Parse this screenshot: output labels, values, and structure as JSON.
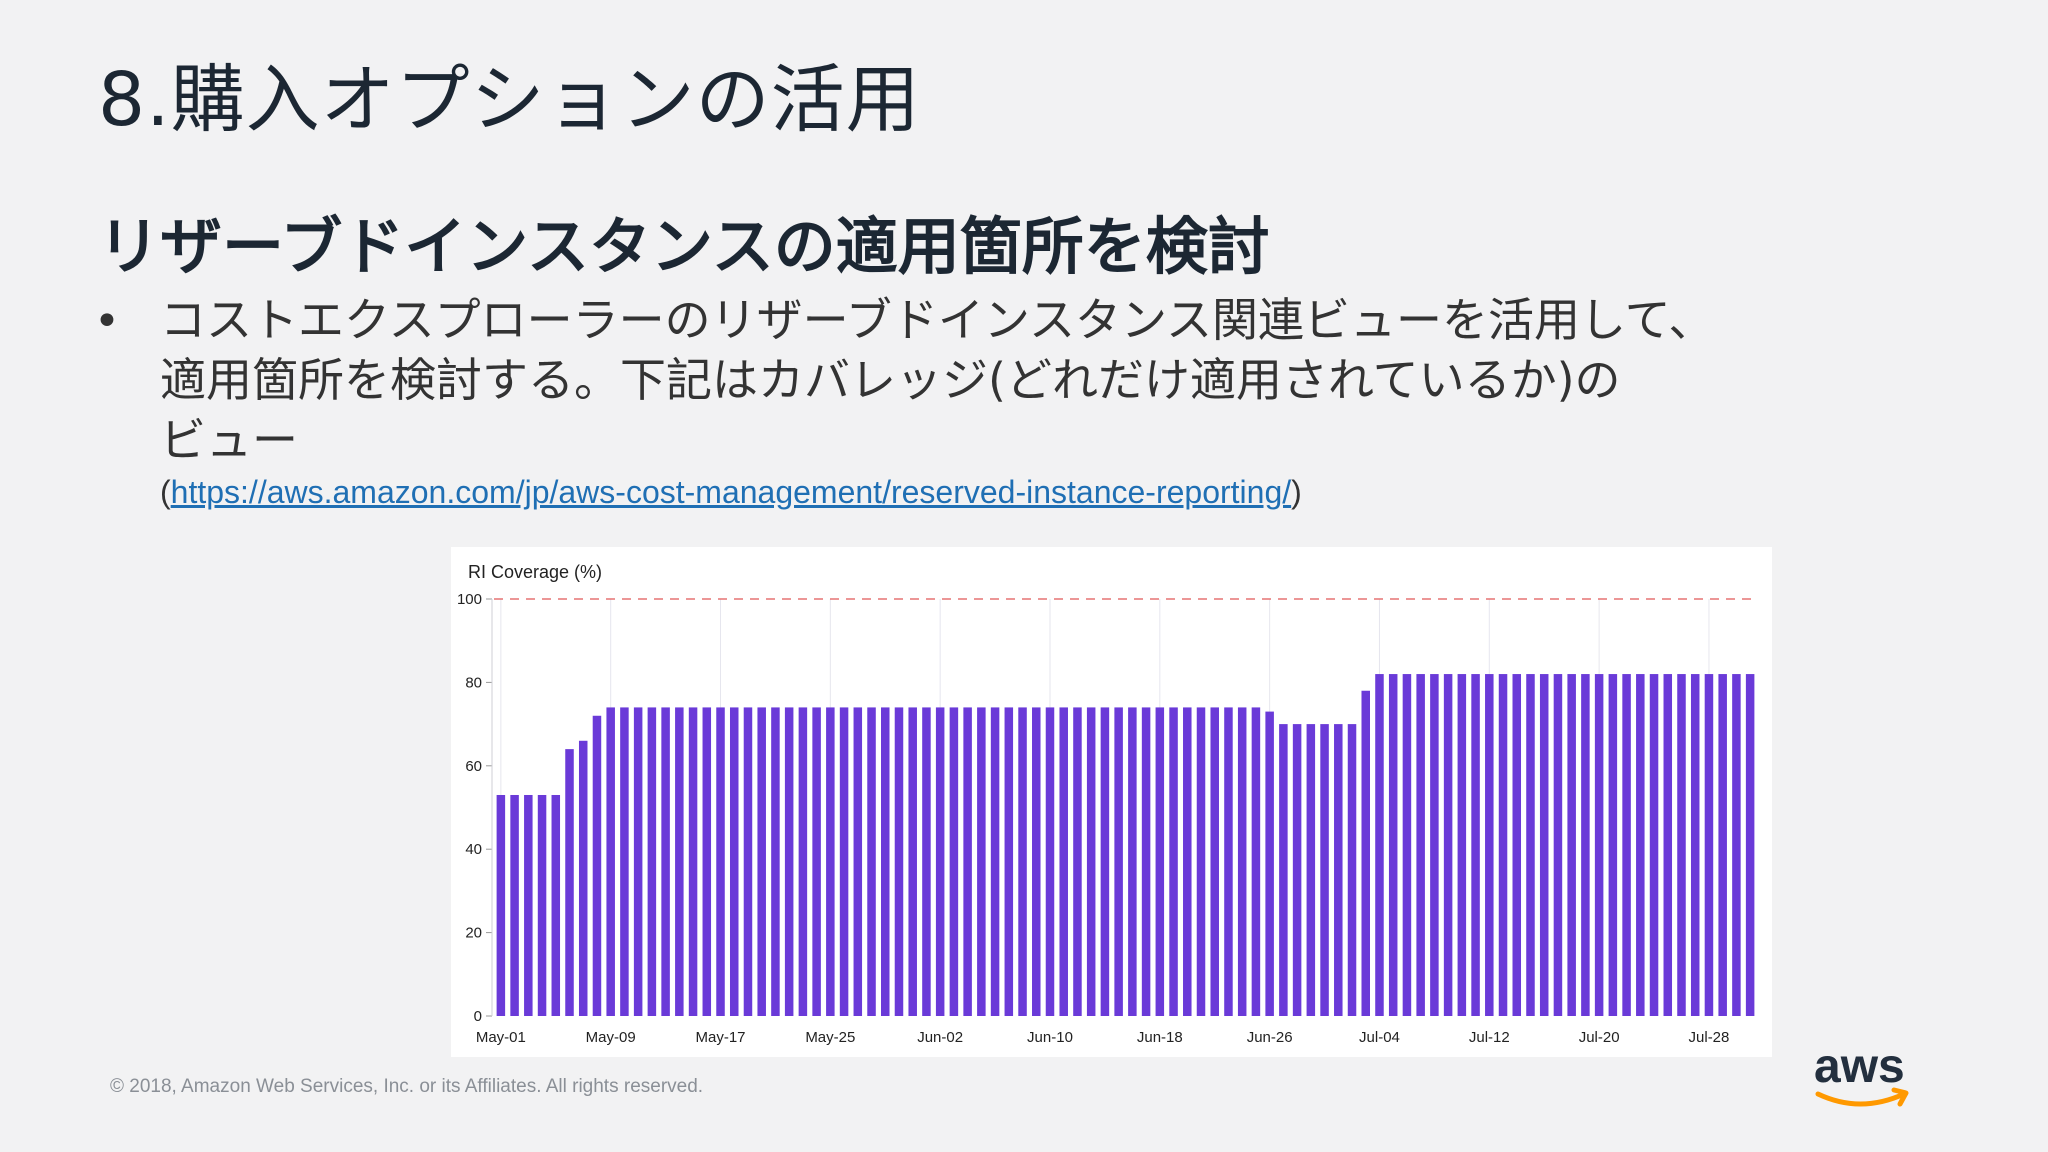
{
  "slide": {
    "title": "8.購入オプションの活用",
    "subtitle": "リザーブドインスタンスの適用箇所を検討",
    "bullet_symbol": "•",
    "bullet_lines": [
      "コストエクスプローラーのリザーブドインスタンス関連ビューを活用して、",
      "適用箇所を検討する。下記はカバレッジ(どれだけ適用されているか)の",
      "ビュー"
    ],
    "link_open": "(",
    "link_text": "https://aws.amazon.com/jp/aws-cost-management/reserved-instance-reporting/",
    "link_close": ")",
    "footer": "© 2018, Amazon Web Services, Inc. or its Affiliates. All rights reserved.",
    "logo_text": "aws"
  },
  "colors": {
    "bar": "#6a3ad8",
    "target_line": "#e57373",
    "grid": "#e6e6ee",
    "smile": "#ff9900"
  },
  "chart_data": {
    "type": "bar",
    "title": "RI Coverage (%)",
    "ylim": [
      0,
      100
    ],
    "yticks": [
      0,
      20,
      40,
      60,
      80,
      100
    ],
    "target_line": 100,
    "grid": true,
    "categories": [
      "May-01",
      "May-02",
      "May-03",
      "May-04",
      "May-05",
      "May-06",
      "May-07",
      "May-08",
      "May-09",
      "May-10",
      "May-11",
      "May-12",
      "May-13",
      "May-14",
      "May-15",
      "May-16",
      "May-17",
      "May-18",
      "May-19",
      "May-20",
      "May-21",
      "May-22",
      "May-23",
      "May-24",
      "May-25",
      "May-26",
      "May-27",
      "May-28",
      "May-29",
      "May-30",
      "May-31",
      "Jun-01",
      "Jun-02",
      "Jun-03",
      "Jun-04",
      "Jun-05",
      "Jun-06",
      "Jun-07",
      "Jun-08",
      "Jun-09",
      "Jun-10",
      "Jun-11",
      "Jun-12",
      "Jun-13",
      "Jun-14",
      "Jun-15",
      "Jun-16",
      "Jun-17",
      "Jun-18",
      "Jun-19",
      "Jun-20",
      "Jun-21",
      "Jun-22",
      "Jun-23",
      "Jun-24",
      "Jun-25",
      "Jun-26",
      "Jun-27",
      "Jun-28",
      "Jun-29",
      "Jun-30",
      "Jul-01",
      "Jul-02",
      "Jul-03",
      "Jul-04",
      "Jul-05",
      "Jul-06",
      "Jul-07",
      "Jul-08",
      "Jul-09",
      "Jul-10",
      "Jul-11",
      "Jul-12",
      "Jul-13",
      "Jul-14",
      "Jul-15",
      "Jul-16",
      "Jul-17",
      "Jul-18",
      "Jul-19",
      "Jul-20",
      "Jul-21",
      "Jul-22",
      "Jul-23",
      "Jul-24",
      "Jul-25",
      "Jul-26",
      "Jul-27",
      "Jul-28",
      "Jul-29",
      "Jul-30",
      "Jul-31"
    ],
    "values": [
      53,
      53,
      53,
      53,
      53,
      64,
      66,
      72,
      74,
      74,
      74,
      74,
      74,
      74,
      74,
      74,
      74,
      74,
      74,
      74,
      74,
      74,
      74,
      74,
      74,
      74,
      74,
      74,
      74,
      74,
      74,
      74,
      74,
      74,
      74,
      74,
      74,
      74,
      74,
      74,
      74,
      74,
      74,
      74,
      74,
      74,
      74,
      74,
      74,
      74,
      74,
      74,
      74,
      74,
      74,
      74,
      73,
      70,
      70,
      70,
      70,
      70,
      70,
      78,
      82,
      82,
      82,
      82,
      82,
      82,
      82,
      82,
      82,
      82,
      82,
      82,
      82,
      82,
      82,
      82,
      82,
      82,
      82,
      82,
      82,
      82,
      82,
      82,
      82,
      82,
      82,
      82
    ],
    "xtick_labels": [
      "May-01",
      "May-09",
      "May-17",
      "May-25",
      "Jun-02",
      "Jun-10",
      "Jun-18",
      "Jun-26",
      "Jul-04",
      "Jul-12",
      "Jul-20",
      "Jul-28"
    ]
  }
}
